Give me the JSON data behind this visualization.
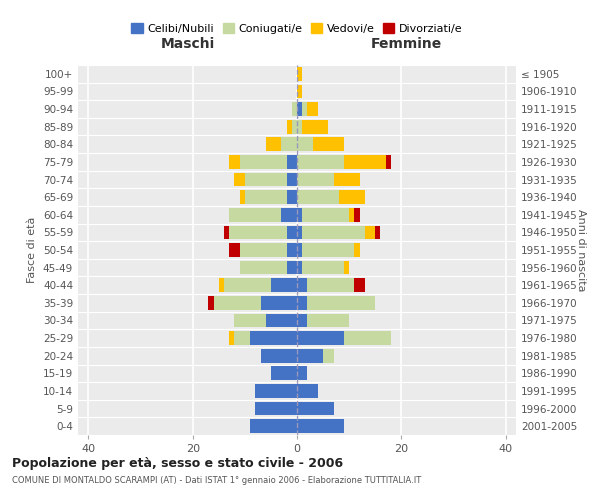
{
  "age_groups": [
    "100+",
    "95-99",
    "90-94",
    "85-89",
    "80-84",
    "75-79",
    "70-74",
    "65-69",
    "60-64",
    "55-59",
    "50-54",
    "45-49",
    "40-44",
    "35-39",
    "30-34",
    "25-29",
    "20-24",
    "15-19",
    "10-14",
    "5-9",
    "0-4"
  ],
  "birth_years": [
    "≤ 1905",
    "1906-1910",
    "1911-1915",
    "1916-1920",
    "1921-1925",
    "1926-1930",
    "1931-1935",
    "1936-1940",
    "1941-1945",
    "1946-1950",
    "1951-1955",
    "1956-1960",
    "1961-1965",
    "1966-1970",
    "1971-1975",
    "1976-1980",
    "1981-1985",
    "1986-1990",
    "1991-1995",
    "1996-2000",
    "2001-2005"
  ],
  "male_celibe": [
    0,
    0,
    0,
    0,
    0,
    2,
    2,
    2,
    3,
    2,
    2,
    2,
    5,
    7,
    6,
    9,
    7,
    5,
    8,
    8,
    9
  ],
  "male_coniugato": [
    0,
    0,
    1,
    1,
    3,
    9,
    8,
    8,
    10,
    11,
    9,
    9,
    9,
    9,
    6,
    3,
    0,
    0,
    0,
    0,
    0
  ],
  "male_vedovo": [
    0,
    0,
    0,
    1,
    3,
    2,
    2,
    1,
    0,
    0,
    0,
    0,
    1,
    0,
    0,
    1,
    0,
    0,
    0,
    0,
    0
  ],
  "male_divorziato": [
    0,
    0,
    0,
    0,
    0,
    0,
    0,
    0,
    0,
    1,
    2,
    0,
    0,
    1,
    0,
    0,
    0,
    0,
    0,
    0,
    0
  ],
  "female_celibe": [
    0,
    0,
    1,
    0,
    0,
    0,
    0,
    0,
    1,
    1,
    1,
    1,
    2,
    2,
    2,
    9,
    5,
    2,
    4,
    7,
    9
  ],
  "female_coniugato": [
    0,
    0,
    1,
    1,
    3,
    9,
    7,
    8,
    9,
    12,
    10,
    8,
    9,
    13,
    8,
    9,
    2,
    0,
    0,
    0,
    0
  ],
  "female_vedovo": [
    1,
    1,
    2,
    5,
    6,
    8,
    5,
    5,
    1,
    2,
    1,
    1,
    0,
    0,
    0,
    0,
    0,
    0,
    0,
    0,
    0
  ],
  "female_divorziato": [
    0,
    0,
    0,
    0,
    0,
    1,
    0,
    0,
    1,
    1,
    0,
    0,
    2,
    0,
    0,
    0,
    0,
    0,
    0,
    0,
    0
  ],
  "color_celibe": "#4472c4",
  "color_coniugato": "#c5d9a0",
  "color_vedovo": "#ffc000",
  "color_divorziato": "#c00000",
  "title": "Popolazione per età, sesso e stato civile - 2006",
  "subtitle": "COMUNE DI MONTALDO SCARAMPI (AT) - Dati ISTAT 1° gennaio 2006 - Elaborazione TUTTITALIA.IT",
  "xlabel_left": "Maschi",
  "xlabel_right": "Femmine",
  "ylabel_left": "Fasce di età",
  "ylabel_right": "Anni di nascita",
  "xlim": 42,
  "legend_labels": [
    "Celibi/Nubili",
    "Coniugati/e",
    "Vedovi/e",
    "Divorziati/e"
  ]
}
